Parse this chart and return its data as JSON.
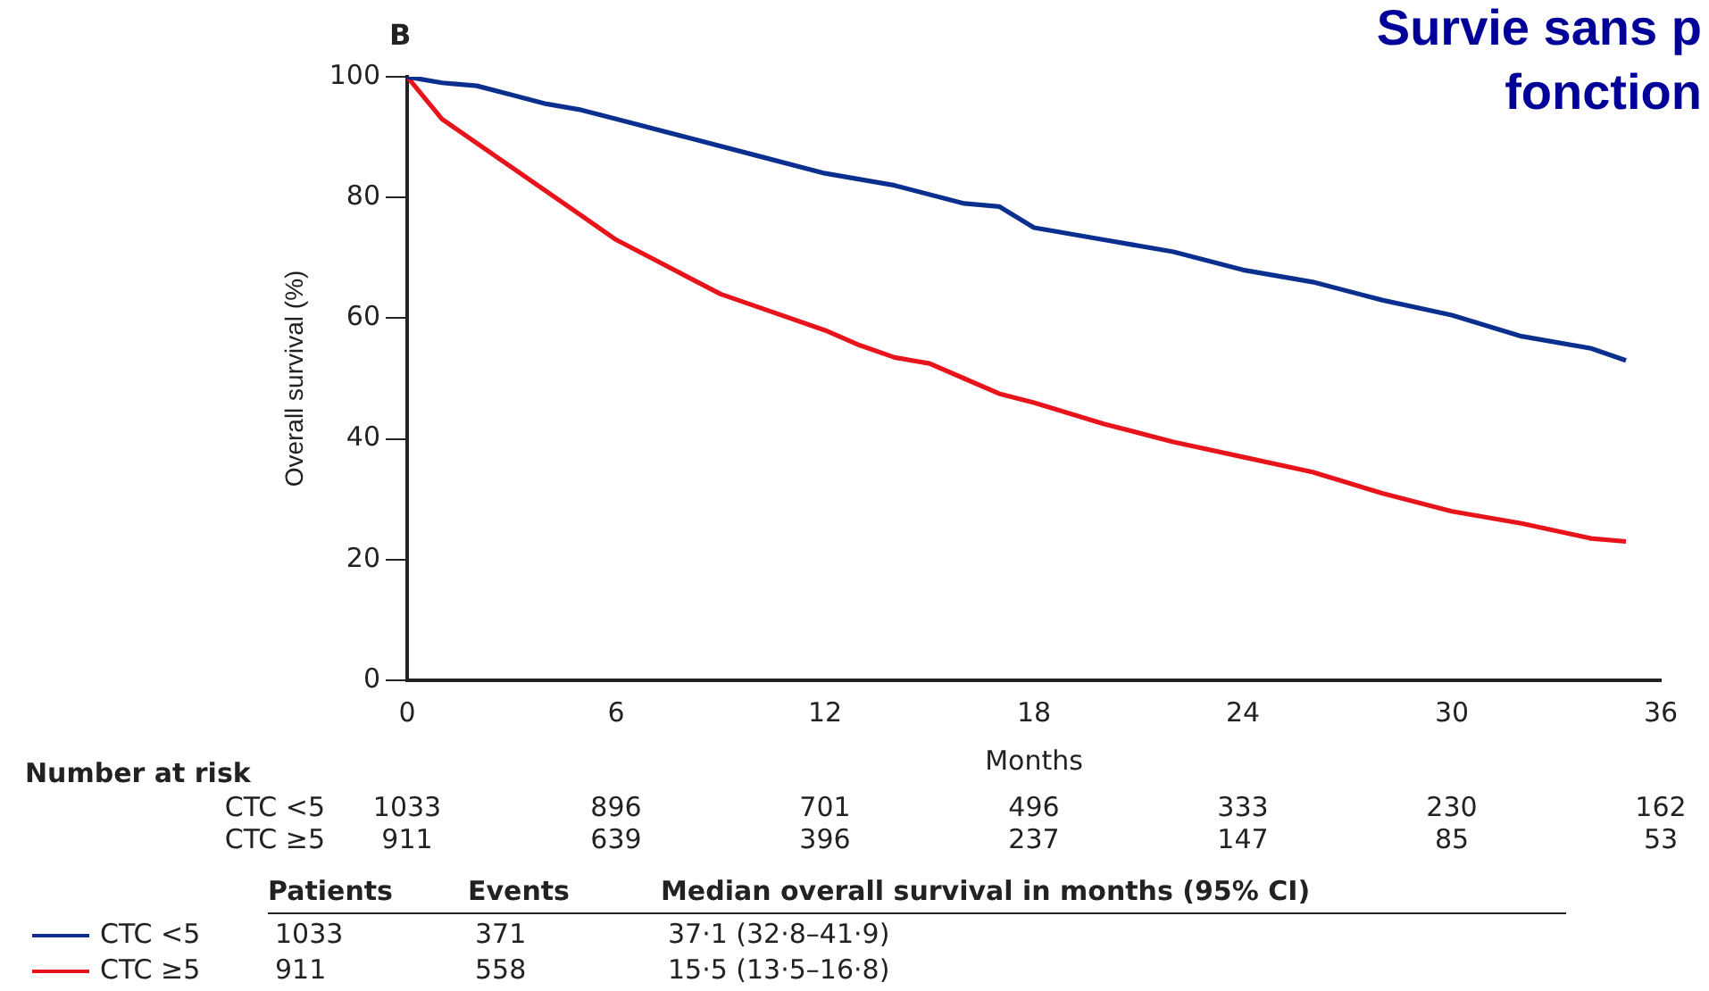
{
  "chart_data": {
    "type": "line",
    "title": "Survie sans p",
    "subtitle": "fonction",
    "xlabel": "Months",
    "ylabel": "Overall survival (%)",
    "xlim": [
      0,
      36
    ],
    "ylim": [
      0,
      100
    ],
    "xticks": [
      0,
      6,
      12,
      18,
      24,
      30,
      36
    ],
    "yticks": [
      0,
      20,
      40,
      60,
      80,
      100
    ],
    "grid": false,
    "legend": "bottom left",
    "marker": "none",
    "line_style": "solid",
    "series": [
      {
        "name": "CTC <5",
        "color": "#0b2f8e",
        "x": [
          0,
          1,
          2,
          3,
          4,
          5,
          6,
          8,
          10,
          12,
          14,
          16,
          17,
          18,
          20,
          22,
          24,
          26,
          28,
          30,
          32,
          34,
          35
        ],
        "values": [
          100,
          99,
          98.5,
          97,
          95.5,
          94.5,
          93,
          90,
          87,
          84,
          82,
          79,
          78.5,
          75,
          73,
          71,
          68,
          66,
          63,
          60.5,
          57,
          55,
          53
        ]
      },
      {
        "name": "CTC ≥5",
        "color": "#e8141b",
        "x": [
          0,
          1,
          2,
          3,
          4,
          5,
          6,
          7,
          8,
          9,
          10,
          12,
          13,
          14,
          15,
          16,
          17,
          18,
          20,
          22,
          24,
          26,
          28,
          30,
          32,
          34,
          35
        ],
        "values": [
          100,
          93,
          89,
          85,
          81,
          77,
          73,
          70,
          67,
          64,
          62,
          58,
          55.5,
          53.5,
          52.5,
          50,
          47.5,
          46,
          42.5,
          39.5,
          37,
          34.5,
          31,
          28,
          26,
          23.5,
          23
        ]
      }
    ],
    "annotations": [
      "B",
      "Number at risk",
      "CTC <5\t1033\t896\t701\t496\t333\t230\t162",
      "CTC ≥5\t911\t639\t396\t237\t147\t85\t53",
      "Patients\tEvents\tMedian overall survival in months (95% CI)",
      "1033\t371\t37·1 (32·8–41·9)",
      "911\t558\t15·5 (13·5–16·8)"
    ]
  }
}
